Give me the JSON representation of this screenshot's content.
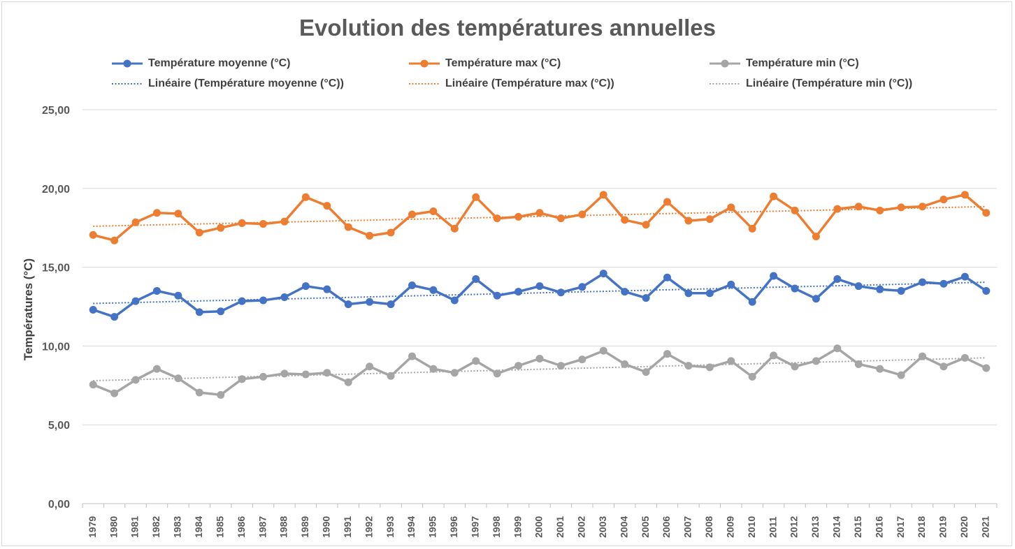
{
  "chart_data": {
    "type": "line",
    "title": "Evolution des températures annuelles",
    "xlabel": "",
    "ylabel": "Températures (°C)",
    "ylim": [
      0,
      25
    ],
    "yticks": [
      "0,00",
      "5,00",
      "10,00",
      "15,00",
      "20,00",
      "25,00"
    ],
    "grid": true,
    "legend_position": "top",
    "categories": [
      "1979",
      "1980",
      "1981",
      "1982",
      "1983",
      "1984",
      "1985",
      "1986",
      "1987",
      "1988",
      "1989",
      "1990",
      "1991",
      "1992",
      "1993",
      "1994",
      "1995",
      "1996",
      "1997",
      "1998",
      "1999",
      "2000",
      "2001",
      "2002",
      "2003",
      "2004",
      "2005",
      "2006",
      "2007",
      "2008",
      "2009",
      "2010",
      "2011",
      "2012",
      "2013",
      "2014",
      "2015",
      "2016",
      "2017",
      "2018",
      "2019",
      "2020",
      "2021"
    ],
    "series": [
      {
        "name": "Température moyenne (°C)",
        "color": "#4472c4",
        "values": [
          12.3,
          11.85,
          12.85,
          13.5,
          13.2,
          12.15,
          12.2,
          12.85,
          12.9,
          13.1,
          13.8,
          13.6,
          12.65,
          12.8,
          12.65,
          13.85,
          13.55,
          12.9,
          14.25,
          13.2,
          13.45,
          13.8,
          13.4,
          13.75,
          14.6,
          13.45,
          13.05,
          14.35,
          13.35,
          13.35,
          13.9,
          12.8,
          14.45,
          13.65,
          13.0,
          14.25,
          13.8,
          13.6,
          13.5,
          14.05,
          13.95,
          14.4,
          13.5
        ]
      },
      {
        "name": "Température max (°C)",
        "color": "#ed7d31",
        "values": [
          17.05,
          16.7,
          17.85,
          18.45,
          18.4,
          17.2,
          17.5,
          17.8,
          17.75,
          17.9,
          19.45,
          18.9,
          17.55,
          17.0,
          17.2,
          18.35,
          18.55,
          17.45,
          19.45,
          18.1,
          18.2,
          18.45,
          18.1,
          18.35,
          19.6,
          18.0,
          17.7,
          19.15,
          17.95,
          18.05,
          18.8,
          17.45,
          19.5,
          18.6,
          16.95,
          18.7,
          18.85,
          18.6,
          18.8,
          18.85,
          19.3,
          19.6,
          18.45
        ]
      },
      {
        "name": "Température min (°C)",
        "color": "#a5a5a5",
        "values": [
          7.55,
          7.0,
          7.85,
          8.55,
          7.95,
          7.05,
          6.9,
          7.9,
          8.05,
          8.25,
          8.2,
          8.3,
          7.7,
          8.7,
          8.1,
          9.35,
          8.55,
          8.3,
          9.05,
          8.25,
          8.75,
          9.2,
          8.75,
          9.15,
          9.7,
          8.85,
          8.35,
          9.5,
          8.75,
          8.65,
          9.05,
          8.05,
          9.4,
          8.7,
          9.05,
          9.85,
          8.85,
          8.55,
          8.15,
          9.35,
          8.7,
          9.25,
          8.6
        ]
      }
    ],
    "trendlines": [
      {
        "name": "Linéaire (Température moyenne (°C))",
        "color": "#4472c4",
        "start": 12.7,
        "end": 14.05
      },
      {
        "name": "Linéaire (Température max (°C))",
        "color": "#ed7d31",
        "start": 17.6,
        "end": 18.85
      },
      {
        "name": "Linéaire (Température min (°C))",
        "color": "#a5a5a5",
        "start": 7.8,
        "end": 9.25
      }
    ]
  }
}
